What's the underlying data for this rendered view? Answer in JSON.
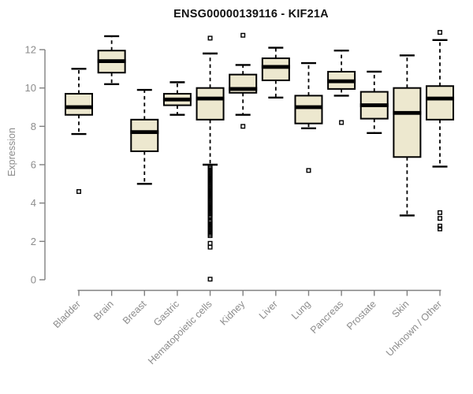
{
  "chart_data": {
    "type": "boxplot",
    "title": "ENSG00000139116 - KIF21A",
    "xlabel": "",
    "ylabel": "Expression",
    "yticks": [
      0,
      2,
      4,
      6,
      8,
      10,
      12
    ],
    "ylim": [
      0,
      12.9
    ],
    "grid": false,
    "legend": "none",
    "categories": [
      "Bladder",
      "Brain",
      "Breast",
      "Gastric",
      "Hematopoietic cells",
      "Kidney",
      "Liver",
      "Lung",
      "Pancreas",
      "Prostate",
      "Skin",
      "Unknown / Other"
    ],
    "boxes": [
      {
        "category": "Bladder",
        "whisker_low": 7.6,
        "q1": 8.6,
        "median": 9.0,
        "q3": 9.7,
        "whisker_high": 11.0,
        "outliers": [
          4.6
        ]
      },
      {
        "category": "Brain",
        "whisker_low": 10.2,
        "q1": 10.8,
        "median": 11.4,
        "q3": 11.95,
        "whisker_high": 12.7,
        "outliers": []
      },
      {
        "category": "Breast",
        "whisker_low": 5.0,
        "q1": 6.7,
        "median": 7.7,
        "q3": 8.35,
        "whisker_high": 9.9,
        "outliers": []
      },
      {
        "category": "Gastric",
        "whisker_low": 8.6,
        "q1": 9.1,
        "median": 9.4,
        "q3": 9.7,
        "whisker_high": 10.3,
        "outliers": []
      },
      {
        "category": "Hematopoietic cells",
        "whisker_low": 6.0,
        "q1": 8.35,
        "median": 9.45,
        "q3": 10.0,
        "whisker_high": 11.8,
        "outliers": [
          12.6,
          5.9,
          5.82,
          5.74,
          5.66,
          5.58,
          5.5,
          5.42,
          5.34,
          5.26,
          5.18,
          5.1,
          5.02,
          4.94,
          4.86,
          4.78,
          4.7,
          4.62,
          4.54,
          4.46,
          4.38,
          4.3,
          4.22,
          4.14,
          4.06,
          3.98,
          3.9,
          3.82,
          3.74,
          3.66,
          3.58,
          3.5,
          3.42,
          3.34,
          3.26,
          3.1,
          3.02,
          2.94,
          2.86,
          2.78,
          2.7,
          2.62,
          2.54,
          2.46,
          2.38,
          2.3,
          1.9,
          1.7,
          0.03
        ]
      },
      {
        "category": "Kidney",
        "whisker_low": 8.6,
        "q1": 9.75,
        "median": 9.95,
        "q3": 10.7,
        "whisker_high": 11.2,
        "outliers": [
          12.75,
          8.0
        ]
      },
      {
        "category": "Liver",
        "whisker_low": 9.5,
        "q1": 10.4,
        "median": 11.1,
        "q3": 11.55,
        "whisker_high": 12.1,
        "outliers": []
      },
      {
        "category": "Lung",
        "whisker_low": 7.9,
        "q1": 8.15,
        "median": 9.0,
        "q3": 9.6,
        "whisker_high": 11.3,
        "outliers": [
          5.7
        ]
      },
      {
        "category": "Pancreas",
        "whisker_low": 9.6,
        "q1": 9.95,
        "median": 10.35,
        "q3": 10.85,
        "whisker_high": 11.95,
        "outliers": [
          8.2
        ]
      },
      {
        "category": "Prostate",
        "whisker_low": 7.65,
        "q1": 8.4,
        "median": 9.1,
        "q3": 9.8,
        "whisker_high": 10.85,
        "outliers": []
      },
      {
        "category": "Skin",
        "whisker_low": 3.35,
        "q1": 6.4,
        "median": 8.7,
        "q3": 10.0,
        "whisker_high": 11.7,
        "outliers": []
      },
      {
        "category": "Unknown / Other",
        "whisker_low": 5.9,
        "q1": 8.35,
        "median": 9.45,
        "q3": 10.1,
        "whisker_high": 12.5,
        "outliers": [
          12.9,
          3.5,
          3.2,
          2.8,
          2.65
        ]
      }
    ],
    "colors": {
      "box_fill": "#EDE8CF",
      "box_border": "#000000",
      "median": "#000000",
      "whisker": "#000000",
      "axis": "#808080",
      "tick_text": "#8C8C8C",
      "title_text": "#111111"
    }
  }
}
